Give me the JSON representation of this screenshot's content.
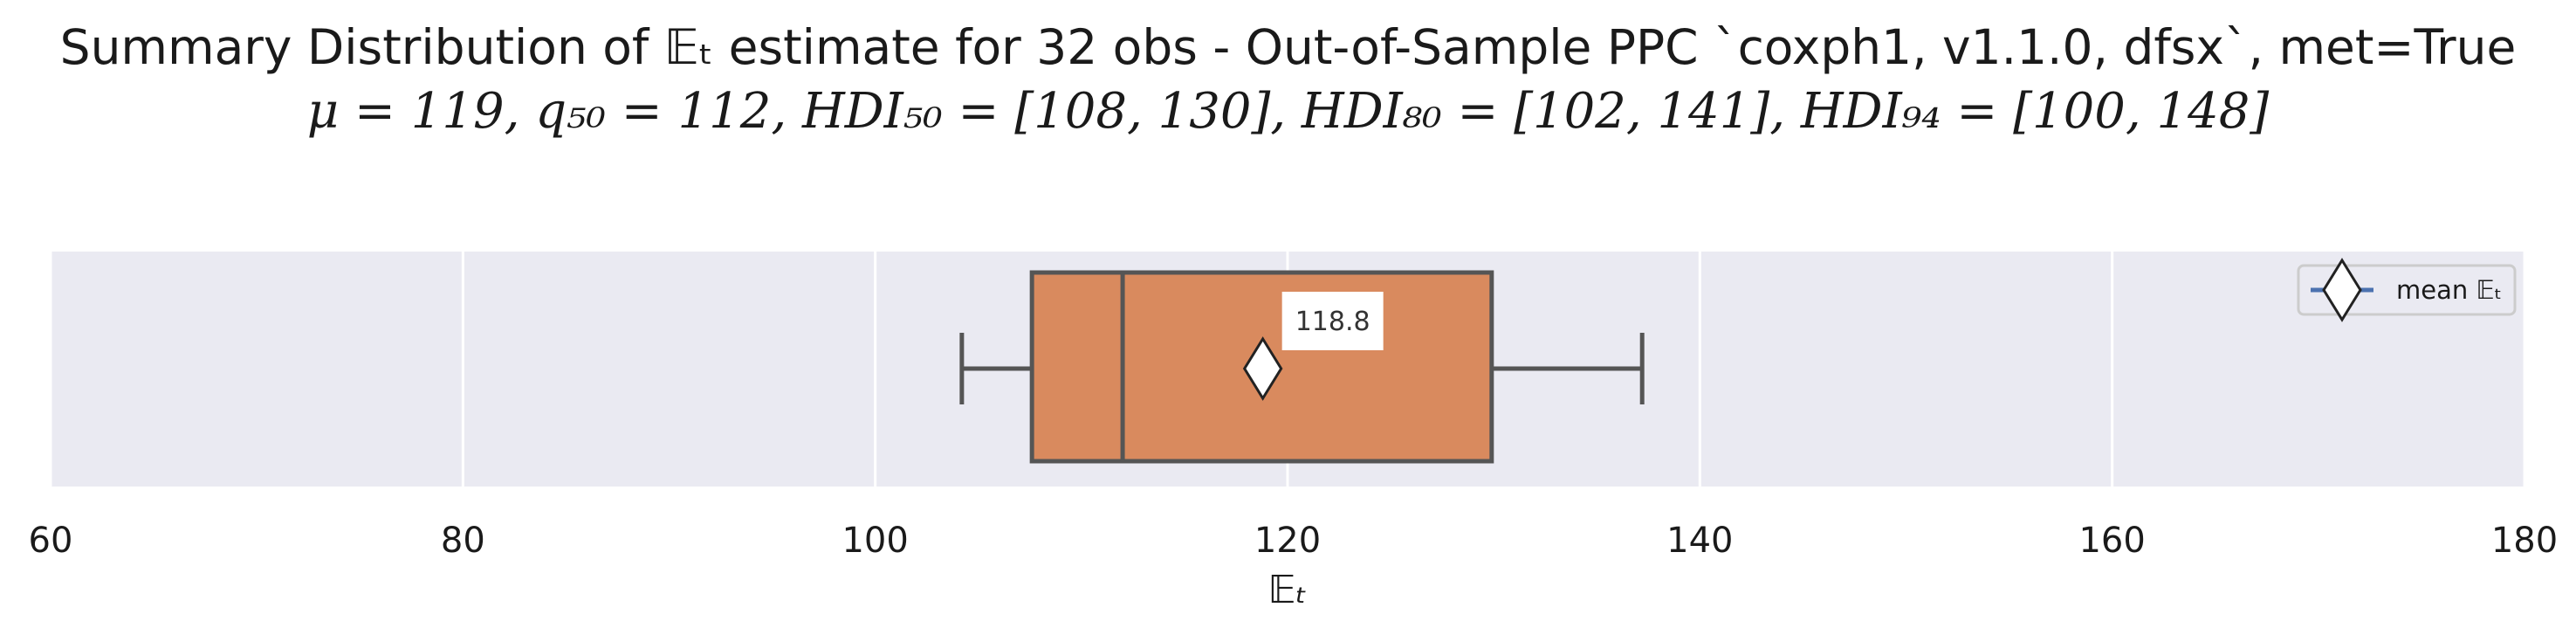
{
  "title": {
    "line1": "Summary Distribution of 𝔼ₜ estimate for 32 obs - Out-of-Sample PPC `coxph1, v1.1.0, dfsx`, met=True",
    "line2": "μ = 119, q₅₀ = 112, HDI₅₀ = [108, 130], HDI₈₀ = [102, 141], HDI₉₄ = [100, 148]"
  },
  "colors": {
    "background": "#eaeaf2",
    "box_fill": "#d98a5e",
    "box_edge": "#555555",
    "grid": "#ffffff",
    "marker_fill": "#ffffff",
    "legend_line": "#4c72b0"
  },
  "chart_data": {
    "type": "box",
    "orientation": "horizontal",
    "xlabel": "𝔼ₜ",
    "xlim": [
      60,
      180
    ],
    "xticks": [
      60,
      80,
      100,
      120,
      140,
      160,
      180
    ],
    "grid": true,
    "box": {
      "whisker_low": 104.2,
      "q1": 107.6,
      "median": 112.0,
      "q3": 129.9,
      "whisker_high": 137.2,
      "mean": 118.8
    },
    "mean_label": "118.8",
    "legend": {
      "placement": "top-right",
      "entries": [
        {
          "label": "mean 𝔼ₜ",
          "marker": "diamond"
        }
      ]
    }
  }
}
